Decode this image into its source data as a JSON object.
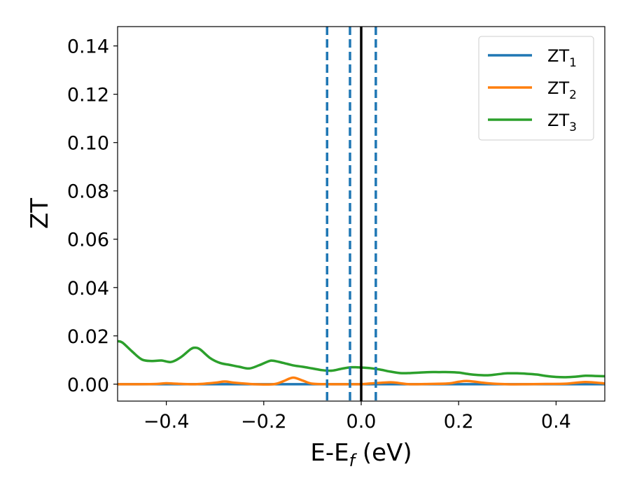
{
  "chart_data": {
    "type": "line",
    "title": "",
    "xlabel": "E-E",
    "xlabel_sub": "f",
    "xlabel_unit": " (eV)",
    "ylabel": "ZT",
    "xlim": [
      -0.5,
      0.5
    ],
    "ylim": [
      -0.007,
      0.148
    ],
    "xticks": [
      -0.4,
      -0.2,
      0.0,
      0.2,
      0.4
    ],
    "xtick_labels": [
      "−0.4",
      "−0.2",
      "0.0",
      "0.2",
      "0.4"
    ],
    "yticks": [
      0.0,
      0.02,
      0.04,
      0.06,
      0.08,
      0.1,
      0.12,
      0.14
    ],
    "ytick_labels": [
      "0.00",
      "0.02",
      "0.04",
      "0.06",
      "0.08",
      "0.10",
      "0.12",
      "0.14"
    ],
    "grid": false,
    "legend_position": "top-right",
    "vlines": [
      {
        "x": 0.0,
        "style": "solid",
        "color": "#000000"
      },
      {
        "x": -0.07,
        "style": "dashed",
        "color": "#1f77b4"
      },
      {
        "x": -0.023,
        "style": "dashed",
        "color": "#1f77b4"
      },
      {
        "x": 0.03,
        "style": "dashed",
        "color": "#1f77b4"
      }
    ],
    "series": [
      {
        "name": "ZT",
        "name_sub": "1",
        "color": "#1f77b4",
        "x": [
          -0.5,
          -0.45,
          -0.4,
          -0.35,
          -0.3,
          -0.25,
          -0.2,
          -0.15,
          -0.1,
          -0.05,
          0.0,
          0.05,
          0.1,
          0.15,
          0.2,
          0.25,
          0.3,
          0.35,
          0.4,
          0.45,
          0.5
        ],
        "values": [
          0,
          0,
          0,
          0,
          0,
          0,
          0,
          0,
          0,
          0,
          0,
          0,
          0,
          0,
          0,
          0,
          0,
          0,
          0,
          0,
          0
        ]
      },
      {
        "name": "ZT",
        "name_sub": "2",
        "color": "#ff7f0e",
        "x": [
          -0.5,
          -0.46,
          -0.42,
          -0.4,
          -0.38,
          -0.34,
          -0.3,
          -0.28,
          -0.26,
          -0.22,
          -0.18,
          -0.16,
          -0.14,
          -0.12,
          -0.1,
          -0.06,
          -0.02,
          0.0,
          0.02,
          0.06,
          0.08,
          0.1,
          0.14,
          0.18,
          0.2,
          0.22,
          0.26,
          0.3,
          0.34,
          0.38,
          0.42,
          0.46,
          0.5
        ],
        "values": [
          0.0,
          0.0,
          0.0001,
          0.0004,
          0.0002,
          0.0,
          0.0006,
          0.0011,
          0.0006,
          0.0,
          0.0,
          0.0012,
          0.0027,
          0.0015,
          0.0002,
          0.0,
          0.0,
          0.0,
          0.0003,
          0.0008,
          0.0004,
          0.0,
          0.0001,
          0.0003,
          0.001,
          0.0013,
          0.0004,
          0.0,
          0.0,
          0.0001,
          0.0002,
          0.0009,
          0.0003
        ]
      },
      {
        "name": "ZT",
        "name_sub": "3",
        "color": "#2ca02c",
        "x": [
          -0.5,
          -0.49,
          -0.47,
          -0.45,
          -0.43,
          -0.41,
          -0.39,
          -0.37,
          -0.35,
          -0.34,
          -0.33,
          -0.31,
          -0.29,
          -0.27,
          -0.25,
          -0.23,
          -0.21,
          -0.19,
          -0.18,
          -0.16,
          -0.14,
          -0.12,
          -0.1,
          -0.08,
          -0.06,
          -0.04,
          -0.02,
          0.0,
          0.02,
          0.04,
          0.06,
          0.08,
          0.1,
          0.12,
          0.14,
          0.16,
          0.18,
          0.2,
          0.22,
          0.24,
          0.26,
          0.28,
          0.3,
          0.32,
          0.34,
          0.36,
          0.38,
          0.4,
          0.42,
          0.44,
          0.46,
          0.48,
          0.5
        ],
        "values": [
          0.0178,
          0.0172,
          0.0135,
          0.0102,
          0.0096,
          0.0098,
          0.0092,
          0.0112,
          0.0145,
          0.0151,
          0.0143,
          0.0108,
          0.0088,
          0.008,
          0.0072,
          0.0065,
          0.0078,
          0.0095,
          0.0097,
          0.0088,
          0.0078,
          0.0072,
          0.0065,
          0.0058,
          0.0056,
          0.0064,
          0.007,
          0.0069,
          0.0066,
          0.006,
          0.0052,
          0.0046,
          0.0046,
          0.0048,
          0.005,
          0.005,
          0.005,
          0.0048,
          0.0042,
          0.0038,
          0.0037,
          0.0041,
          0.0045,
          0.0045,
          0.0043,
          0.004,
          0.0034,
          0.003,
          0.0029,
          0.0031,
          0.0035,
          0.0034,
          0.0033
        ]
      }
    ]
  }
}
